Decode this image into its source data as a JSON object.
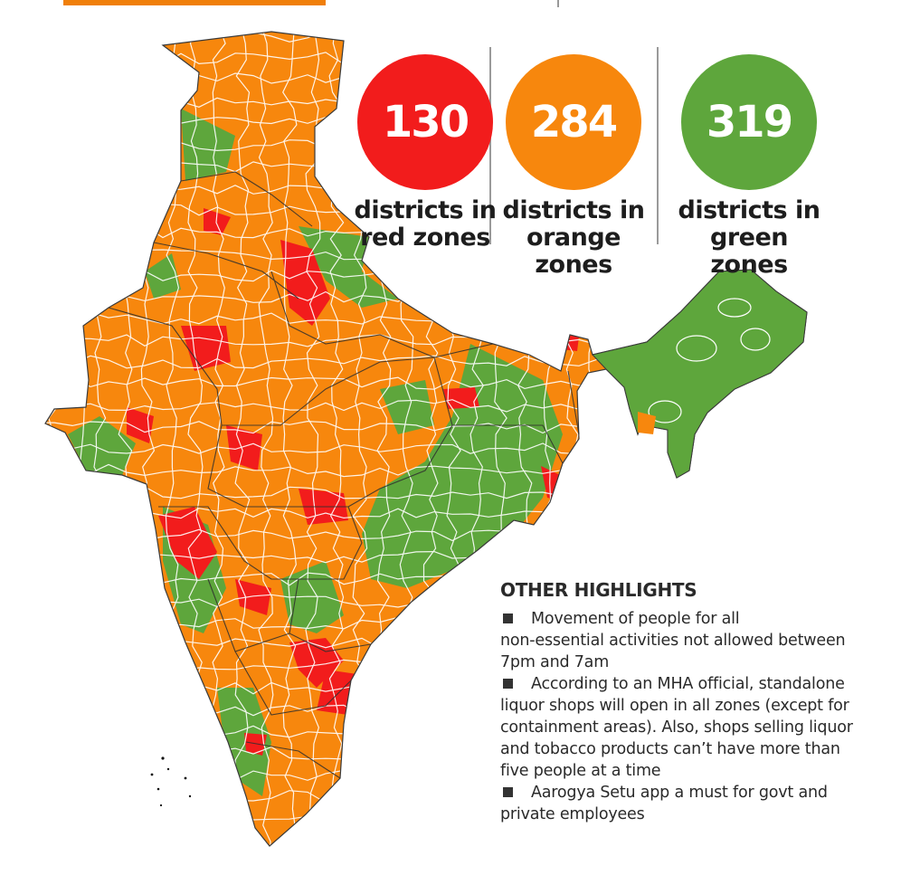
{
  "colors": {
    "red": "#f21c1c",
    "orange": "#f7870d",
    "green": "#5ea63c",
    "border": "#ffffff",
    "state_border": "#2a2a2a"
  },
  "stats": [
    {
      "value": "130",
      "line1": "districts in",
      "line2": "red zones",
      "color": "#f21c1c"
    },
    {
      "value": "284",
      "line1": "districts in",
      "line2": "orange zones",
      "color": "#f7870d"
    },
    {
      "value": "319",
      "line1": "districts in",
      "line2": "green zones",
      "color": "#5ea63c"
    }
  ],
  "highlights": {
    "title": "OTHER HIGHLIGHTS",
    "items": [
      {
        "line1": "Movement of people for all",
        "line2": "non-essential activities not allowed between",
        "line3": "7pm and 7am"
      },
      {
        "line1": "According to an MHA official, standalone",
        "line2": "liquor shops will open in all zones (except for",
        "line3": "containment areas). Also, shops selling liquor",
        "line4": "and tobacco products can’t have more than",
        "line5": "five people at a time"
      },
      {
        "line1": "Aarogya Setu app a must for govt and",
        "line2": "private employees"
      }
    ]
  }
}
